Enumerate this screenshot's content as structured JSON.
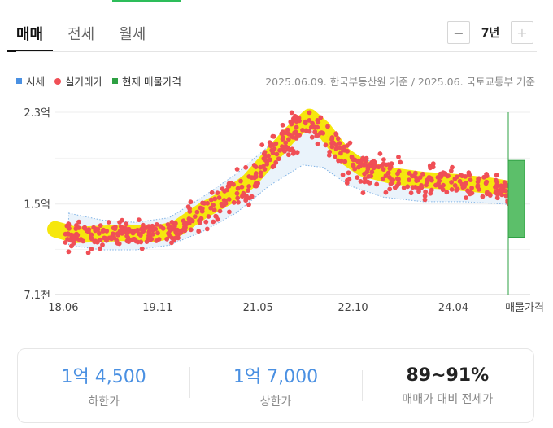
{
  "tabs": [
    {
      "label": "매매",
      "active": true
    },
    {
      "label": "전세",
      "active": false
    },
    {
      "label": "월세",
      "active": false
    }
  ],
  "period": {
    "minus_label": "−",
    "value": "7년",
    "plus_label": "+"
  },
  "legend": [
    {
      "label": "시세",
      "color": "#4a90e2"
    },
    {
      "label": "실거래가",
      "color": "#f04f56"
    },
    {
      "label": "현재 매물가격",
      "color": "#2ea043"
    }
  ],
  "source_text": "2025.06.09. 한국부동산원 기준 / 2025.06. 국토교통부 기준",
  "chart_data": {
    "type": "scatter",
    "y_tick_labels": [
      "2.3억",
      "1.5억",
      "7.1천"
    ],
    "y_ticks": [
      2.3,
      1.5,
      0.71
    ],
    "ylim": [
      0.71,
      2.3
    ],
    "xlim": [
      2018.3,
      2025.4
    ],
    "x_tick_labels": [
      "18.06",
      "19.11",
      "21.05",
      "22.10",
      "24.04"
    ],
    "x_ticks": [
      2018.42,
      2019.83,
      2021.33,
      2022.75,
      2024.25
    ],
    "current_listing_label": "매물가격",
    "current_listing_range": [
      1.21,
      1.88
    ],
    "series": [
      {
        "name": "실거래가",
        "type": "scatter",
        "color": "#f04f56",
        "trend": [
          [
            2018.3,
            1.28
          ],
          [
            2018.6,
            1.23
          ],
          [
            2019.0,
            1.24
          ],
          [
            2019.4,
            1.25
          ],
          [
            2019.8,
            1.24
          ],
          [
            2020.1,
            1.28
          ],
          [
            2020.5,
            1.44
          ],
          [
            2020.9,
            1.57
          ],
          [
            2021.2,
            1.7
          ],
          [
            2021.5,
            1.9
          ],
          [
            2021.8,
            2.1
          ],
          [
            2022.1,
            2.26
          ],
          [
            2022.3,
            2.16
          ],
          [
            2022.6,
            1.93
          ],
          [
            2022.9,
            1.81
          ],
          [
            2023.3,
            1.75
          ],
          [
            2023.8,
            1.71
          ],
          [
            2024.3,
            1.69
          ],
          [
            2024.8,
            1.66
          ],
          [
            2025.2,
            1.62
          ]
        ],
        "spread": [
          0.15,
          0.12,
          0.1,
          0.09,
          0.09,
          0.1,
          0.13,
          0.15,
          0.16,
          0.17,
          0.18,
          0.2,
          0.18,
          0.15,
          0.14,
          0.13,
          0.12,
          0.11,
          0.1,
          0.1
        ]
      },
      {
        "name": "시세",
        "type": "band",
        "color": "#4a90e2",
        "upper": [
          [
            2018.5,
            1.42
          ],
          [
            2019.0,
            1.36
          ],
          [
            2019.5,
            1.34
          ],
          [
            2020.0,
            1.38
          ],
          [
            2020.5,
            1.56
          ],
          [
            2021.0,
            1.76
          ],
          [
            2021.5,
            2.01
          ],
          [
            2022.0,
            2.21
          ],
          [
            2022.3,
            2.12
          ],
          [
            2022.7,
            1.96
          ],
          [
            2023.2,
            1.82
          ],
          [
            2023.8,
            1.74
          ],
          [
            2024.4,
            1.71
          ],
          [
            2025.0,
            1.69
          ],
          [
            2025.3,
            1.66
          ]
        ],
        "lower": [
          [
            2018.5,
            1.14
          ],
          [
            2019.0,
            1.1
          ],
          [
            2019.5,
            1.1
          ],
          [
            2020.0,
            1.14
          ],
          [
            2020.5,
            1.26
          ],
          [
            2021.0,
            1.42
          ],
          [
            2021.5,
            1.66
          ],
          [
            2022.0,
            1.84
          ],
          [
            2022.3,
            1.82
          ],
          [
            2022.7,
            1.66
          ],
          [
            2023.2,
            1.56
          ],
          [
            2023.8,
            1.52
          ],
          [
            2024.4,
            1.52
          ],
          [
            2025.0,
            1.5
          ],
          [
            2025.3,
            1.48
          ]
        ]
      }
    ],
    "highlight_color": "#f5e600"
  },
  "summary": [
    {
      "value": "1억 4,500",
      "label": "하한가",
      "style": "blue"
    },
    {
      "value": "1억 7,000",
      "label": "상한가",
      "style": "blue"
    },
    {
      "value": "89~91%",
      "label": "매매가 대비 전세가",
      "style": "dark"
    }
  ]
}
